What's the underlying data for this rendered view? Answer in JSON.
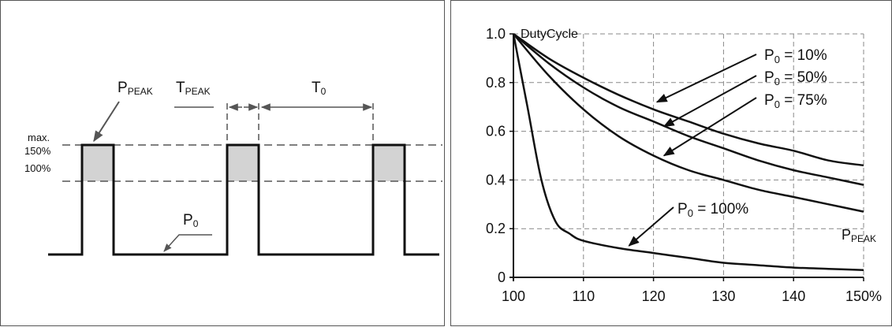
{
  "colors": {
    "ink": "#111111",
    "dash": "#555555",
    "grid": "#888888",
    "shade": "#d3d3d3"
  },
  "pulse_diagram": {
    "label_max": "max.",
    "label_150": "150%",
    "label_100": "100%",
    "p_peak": {
      "base": "P",
      "sub": "PEAK"
    },
    "t_peak": {
      "base": "T",
      "sub": "PEAK"
    },
    "t_zero": {
      "base": "T",
      "sub": "0"
    },
    "p_zero": {
      "base": "P",
      "sub": "0"
    }
  },
  "chart_data": {
    "type": "line",
    "ylabel": "DutyCycle",
    "xlabel": {
      "base": "P",
      "sub": "PEAK"
    },
    "xlim": [
      100,
      150
    ],
    "ylim": [
      0,
      1.0
    ],
    "x_ticks": [
      100,
      110,
      120,
      130,
      140,
      150
    ],
    "x_tick_labels": [
      "100",
      "110",
      "120",
      "130",
      "140",
      "150%"
    ],
    "y_ticks": [
      0,
      0.2,
      0.4,
      0.6,
      0.8,
      1.0
    ],
    "y_tick_labels": [
      "0",
      "0.2",
      "0.4",
      "0.6",
      "0.8",
      "1.0"
    ],
    "grid": "dashed",
    "series": [
      {
        "name": "P0 = 10%",
        "label": {
          "base": "P",
          "sub": "0",
          "rest": " = 10%"
        },
        "x": [
          100,
          105,
          110,
          115,
          120,
          125,
          130,
          135,
          140,
          145,
          150
        ],
        "y": [
          1.0,
          0.9,
          0.82,
          0.75,
          0.69,
          0.64,
          0.59,
          0.55,
          0.52,
          0.48,
          0.46
        ]
      },
      {
        "name": "P0 = 50%",
        "label": {
          "base": "P",
          "sub": "0",
          "rest": " = 50%"
        },
        "x": [
          100,
          105,
          110,
          115,
          120,
          125,
          130,
          135,
          140,
          145,
          150
        ],
        "y": [
          1.0,
          0.88,
          0.78,
          0.7,
          0.64,
          0.58,
          0.53,
          0.48,
          0.44,
          0.41,
          0.38
        ]
      },
      {
        "name": "P0 = 75%",
        "label": {
          "base": "P",
          "sub": "0",
          "rest": " = 75%"
        },
        "x": [
          100,
          105,
          110,
          115,
          120,
          125,
          130,
          135,
          140,
          145,
          150
        ],
        "y": [
          1.0,
          0.83,
          0.69,
          0.58,
          0.5,
          0.44,
          0.4,
          0.36,
          0.33,
          0.3,
          0.27
        ]
      },
      {
        "name": "P0 = 100%",
        "label": {
          "base": "P",
          "sub": "0",
          "rest": " = 100%"
        },
        "x": [
          100,
          102,
          104,
          106,
          108,
          110,
          115,
          120,
          125,
          130,
          135,
          140,
          145,
          150
        ],
        "y": [
          1.0,
          0.7,
          0.4,
          0.23,
          0.18,
          0.15,
          0.12,
          0.1,
          0.08,
          0.06,
          0.05,
          0.04,
          0.035,
          0.03
        ]
      }
    ]
  }
}
